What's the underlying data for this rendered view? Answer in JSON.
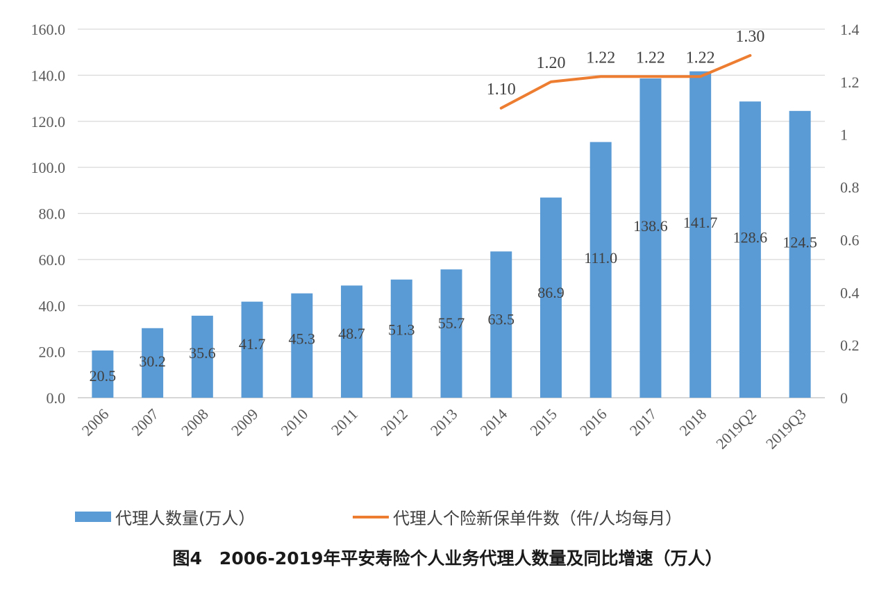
{
  "chart_data": {
    "type": "bar",
    "caption": "图4　2006-2019年平安寿险个人业务代理人数量及同比增速（万人）",
    "categories": [
      "2006",
      "2007",
      "2008",
      "2009",
      "2010",
      "2011",
      "2012",
      "2013",
      "2014",
      "2015",
      "2016",
      "2017",
      "2018",
      "2019Q2",
      "2019Q3"
    ],
    "series": [
      {
        "name": "代理人数量(万人）",
        "type": "bar",
        "axis": "left",
        "color": "#5b9bd5",
        "values": [
          20.5,
          30.2,
          35.6,
          41.7,
          45.3,
          48.7,
          51.3,
          55.7,
          63.5,
          86.9,
          111.0,
          138.6,
          141.7,
          128.6,
          124.5
        ],
        "labels": [
          "20.5",
          "30.2",
          "35.6",
          "41.7",
          "45.3",
          "48.7",
          "51.3",
          "55.7",
          "63.5",
          "86.9",
          "111.0",
          "138.6",
          "141.7",
          "128.6",
          "124.5"
        ]
      },
      {
        "name": "代理人个险新保单件数（件/人均每月）",
        "type": "line",
        "axis": "right",
        "color": "#ed7d31",
        "values": [
          null,
          null,
          null,
          null,
          null,
          null,
          null,
          null,
          1.1,
          1.2,
          1.22,
          1.22,
          1.22,
          1.3,
          null
        ],
        "labels": [
          null,
          null,
          null,
          null,
          null,
          null,
          null,
          null,
          "1.10",
          "1.20",
          "1.22",
          "1.22",
          "1.22",
          "1.30",
          null
        ]
      }
    ],
    "y_left": {
      "range": [
        0,
        160
      ],
      "ticks": [
        "0.0",
        "20.0",
        "40.0",
        "60.0",
        "80.0",
        "100.0",
        "120.0",
        "140.0",
        "160.0"
      ]
    },
    "y_right": {
      "range": [
        0,
        1.4
      ],
      "ticks": [
        "0",
        "0.2",
        "0.4",
        "0.6",
        "0.8",
        "1",
        "1.2",
        "1.4"
      ]
    },
    "legend": {
      "position": "bottom",
      "items": [
        {
          "label": "代理人数量(万人）",
          "color": "#5b9bd5",
          "shape": "square"
        },
        {
          "label": "代理人个险新保单件数（件/人均每月）",
          "color": "#ed7d31",
          "shape": "line"
        }
      ]
    },
    "grid": true
  }
}
